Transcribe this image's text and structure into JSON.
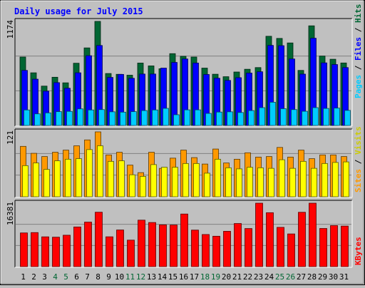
{
  "chart_data": {
    "type": "bar",
    "title": "Daily usage for July 2015",
    "categories": [
      "1",
      "2",
      "3",
      "4",
      "5",
      "6",
      "7",
      "8",
      "9",
      "10",
      "11",
      "12",
      "13",
      "14",
      "15",
      "16",
      "17",
      "18",
      "19",
      "20",
      "21",
      "22",
      "23",
      "24",
      "25",
      "26",
      "27",
      "28",
      "29",
      "30",
      "31"
    ],
    "weekend_days": [
      "4",
      "5",
      "11",
      "12",
      "18",
      "19",
      "25",
      "26"
    ],
    "panels": [
      {
        "name": "top",
        "ylim": [
          0,
          1174
        ],
        "ytick_label": "1174",
        "series": [
          {
            "name": "Hits",
            "color": "#006633",
            "values": [
              772,
              594,
              444,
              544,
              481,
              702,
              875,
              1174,
              586,
              577,
              567,
              704,
              672,
              640,
              810,
              780,
              772,
              647,
              578,
              550,
              603,
              634,
              653,
              1006,
              982,
              931,
              621,
              1124,
              783,
              747,
              705
            ]
          },
          {
            "name": "Files",
            "color": "#0000ff",
            "values": [
              621,
              522,
              387,
              483,
              420,
              594,
              787,
              902,
              542,
              576,
              532,
              580,
              580,
              647,
              711,
              750,
              704,
              575,
              533,
              508,
              539,
              591,
              606,
              903,
              900,
              750,
              579,
              984,
              706,
              687,
              653
            ]
          },
          {
            "name": "Pages",
            "color": "#00ccff",
            "values": [
              175,
              131,
              142,
              156,
              159,
              187,
              175,
              179,
              154,
              150,
              156,
              168,
              175,
              193,
              121,
              176,
              176,
              136,
              151,
              154,
              146,
              168,
              201,
              262,
              189,
              179,
              160,
              201,
              192,
              196,
              170
            ]
          }
        ]
      },
      {
        "name": "middle",
        "ylim": [
          0,
          121
        ],
        "ytick_label": "121",
        "series": [
          {
            "name": "Sites",
            "color": "#ff9900",
            "values": [
              94,
              81,
              75,
              83,
              87,
              95,
              106,
              121,
              78,
              83,
              59,
              45,
              83,
              53,
              72,
              87,
              73,
              61,
              89,
              63,
              70,
              82,
              74,
              75,
              92,
              74,
              87,
              71,
              78,
              78,
              75
            ]
          },
          {
            "name": "Visits",
            "color": "#ffff00",
            "values": [
              58,
              63,
              51,
              67,
              70,
              71,
              88,
              95,
              66,
              67,
              41,
              38,
              60,
              55,
              55,
              62,
              62,
              44,
              70,
              54,
              52,
              55,
              54,
              53,
              69,
              53,
              66,
              53,
              62,
              64,
              65
            ]
          }
        ]
      },
      {
        "name": "bottom",
        "ylim": [
          0,
          16381
        ],
        "ytick_label": "16381",
        "series": [
          {
            "name": "KBytes",
            "color": "#ff0000",
            "values": [
              8700,
              8790,
              7690,
              7600,
              8110,
              10240,
              11490,
              14050,
              7700,
              9460,
              6840,
              12000,
              11390,
              10780,
              10740,
              13580,
              9430,
              8290,
              7850,
              9120,
              11130,
              9830,
              16381,
              13920,
              10140,
              8440,
              14030,
              16381,
              9850,
              10600,
              10470
            ]
          }
        ]
      }
    ],
    "right_labels": [
      {
        "text": "Pages",
        "color": "#00ccff"
      },
      {
        "text": "Files",
        "color": "#0000ff"
      },
      {
        "text": "Hits",
        "color": "#006633"
      },
      {
        "text": "Sites",
        "color": "#ff9900"
      },
      {
        "text": "Visits",
        "color": "#cccc00"
      },
      {
        "text": "KBytes",
        "color": "#ff0000"
      }
    ],
    "separator": "/",
    "colors": {
      "background": "#c0c0c0",
      "title": "#0000ff",
      "weekday_label": "#000000",
      "weekend_label": "#006633",
      "gridline": "#808080"
    }
  }
}
